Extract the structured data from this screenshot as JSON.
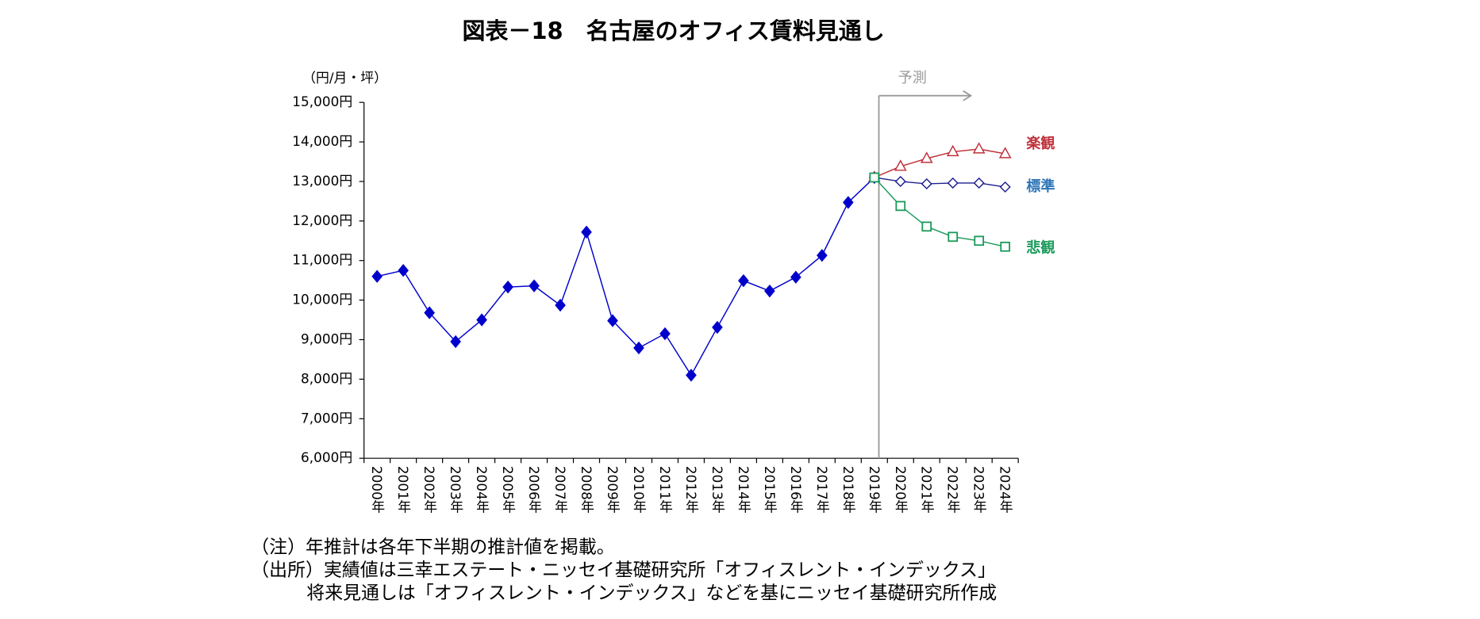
{
  "chart_data": {
    "type": "line",
    "title": "図表－18　名古屋のオフィス賃料見通し",
    "y_axis_label": "（円/月・坪）",
    "annotation": "予測",
    "categories": [
      "2000年",
      "2001年",
      "2002年",
      "2003年",
      "2004年",
      "2005年",
      "2006年",
      "2007年",
      "2008年",
      "2009年",
      "2010年",
      "2011年",
      "2012年",
      "2013年",
      "2014年",
      "2015年",
      "2016年",
      "2017年",
      "2018年",
      "2019年",
      "2020年",
      "2021年",
      "2022年",
      "2023年",
      "2024年"
    ],
    "series": [
      {
        "color": "#0000cc",
        "marker": "filled-diamond",
        "values": [
          10600,
          10750,
          9680,
          8950,
          9500,
          10330,
          10360,
          9870,
          11720,
          9480,
          8790,
          9150,
          8100,
          9310,
          10490,
          10230,
          10580,
          11130,
          12470,
          13100,
          null,
          null,
          null,
          null,
          null
        ]
      },
      {
        "name": "楽観",
        "color": "#c0303a",
        "marker": "triangle",
        "values": [
          null,
          null,
          null,
          null,
          null,
          null,
          null,
          null,
          null,
          null,
          null,
          null,
          null,
          null,
          null,
          null,
          null,
          null,
          null,
          13100,
          13380,
          13580,
          13750,
          13820,
          13700
        ]
      },
      {
        "name": "標準",
        "color": "#1f1f8f",
        "label_color": "#2e75b6",
        "marker": "diamond",
        "values": [
          null,
          null,
          null,
          null,
          null,
          null,
          null,
          null,
          null,
          null,
          null,
          null,
          null,
          null,
          null,
          null,
          null,
          null,
          null,
          13100,
          13000,
          12940,
          12960,
          12960,
          12860
        ]
      },
      {
        "name": "悲観",
        "color": "#1a9a5a",
        "marker": "square",
        "values": [
          null,
          null,
          null,
          null,
          null,
          null,
          null,
          null,
          null,
          null,
          null,
          null,
          null,
          null,
          null,
          null,
          null,
          null,
          null,
          13100,
          12380,
          11860,
          11600,
          11500,
          11350
        ]
      }
    ],
    "ylim": [
      6000,
      15000
    ],
    "yticks": [
      {
        "value": 6000,
        "label": "6,000円"
      },
      {
        "value": 7000,
        "label": "7,000円"
      },
      {
        "value": 8000,
        "label": "8,000円"
      },
      {
        "value": 9000,
        "label": "9,000円"
      },
      {
        "value": 10000,
        "label": "10,000円"
      },
      {
        "value": 11000,
        "label": "11,000円"
      },
      {
        "value": 12000,
        "label": "12,000円"
      },
      {
        "value": 13000,
        "label": "13,000円"
      },
      {
        "value": 14000,
        "label": "14,000円"
      },
      {
        "value": 15000,
        "label": "15,000円"
      }
    ],
    "notes": [
      "（注）年推計は各年下半期の推計値を掲載。",
      "（出所）実績値は三幸エステート・ニッセイ基礎研究所「オフィスレント・インデックス」",
      "将来見通しは「オフィスレント・インデックス」などを基にニッセイ基礎研究所作成"
    ]
  }
}
